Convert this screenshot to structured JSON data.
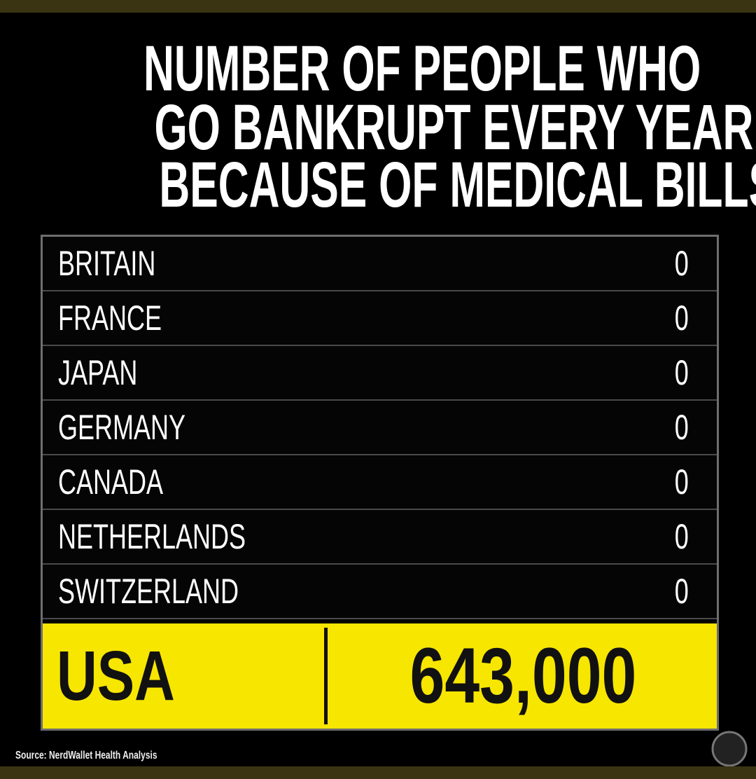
{
  "header": {
    "title_lines": [
      "NUMBER OF PEOPLE WHO",
      "GO BANKRUPT EVERY YEAR",
      "BECAUSE OF MEDICAL BILLS"
    ]
  },
  "table": {
    "rows": [
      [
        "BRITAIN",
        "0"
      ],
      [
        "FRANCE",
        "0"
      ],
      [
        "JAPAN",
        "0"
      ],
      [
        "GERMANY",
        "0"
      ],
      [
        "CANADA",
        "0"
      ],
      [
        "NETHERLANDS",
        "0"
      ],
      [
        "SWITZERLAND",
        "0"
      ]
    ],
    "highlight": [
      "USA",
      "643,000"
    ]
  },
  "footer": {
    "source": "Source: NerdWallet Health Analysis"
  }
}
